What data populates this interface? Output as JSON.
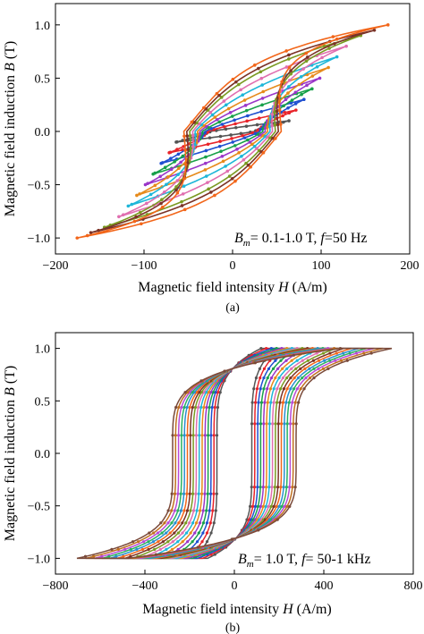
{
  "chart_data": [
    {
      "panel_label": "(a)",
      "type": "line",
      "xlabel_main": "Magnetic field intensity ",
      "xlabel_italic": "H",
      "xlabel_unit": " (A/m)",
      "ylabel_main": "Magnetic field induction ",
      "ylabel_italic": "B",
      "ylabel_unit": " (T)",
      "xlim": [
        -200,
        200
      ],
      "ylim": [
        -1.15,
        1.2
      ],
      "xticks": [
        -200,
        -100,
        0,
        100,
        200
      ],
      "yticks": [
        -1.0,
        -0.5,
        0.0,
        0.5,
        1.0
      ],
      "xtick_labels": [
        "−200",
        "−100",
        "0",
        "100",
        "200"
      ],
      "ytick_labels": [
        "−1.0",
        "−0.5",
        "0.0",
        "0.5",
        "1.0"
      ],
      "grid": false,
      "legend": "none",
      "annotation": {
        "sym": "B",
        "sub": "m",
        "rest": "= 0.1-1.0 T, ",
        "sym2": "f",
        "rest2": "=50 Hz"
      },
      "series": [
        {
          "color": "#555555",
          "Bm": 0.1,
          "Hm": 55,
          "Hc": 45,
          "sharp": 1.2
        },
        {
          "color": "#e8242a",
          "Bm": 0.2,
          "Hm": 62,
          "Hc": 50,
          "sharp": 1.3
        },
        {
          "color": "#1f4fd0",
          "Bm": 0.3,
          "Hm": 70,
          "Hc": 56,
          "sharp": 1.4
        },
        {
          "color": "#18a04a",
          "Bm": 0.4,
          "Hm": 78,
          "Hc": 62,
          "sharp": 1.6
        },
        {
          "color": "#9a36c8",
          "Bm": 0.5,
          "Hm": 86,
          "Hc": 67,
          "sharp": 1.8
        },
        {
          "color": "#e68a1a",
          "Bm": 0.6,
          "Hm": 95,
          "Hc": 72,
          "sharp": 2.0
        },
        {
          "color": "#1db6d8",
          "Bm": 0.7,
          "Hm": 104,
          "Hc": 77,
          "sharp": 2.3
        },
        {
          "color": "#e06fb0",
          "Bm": 0.8,
          "Hm": 114,
          "Hc": 82,
          "sharp": 2.6
        },
        {
          "color": "#7a9a22",
          "Bm": 0.9,
          "Hm": 130,
          "Hc": 88,
          "sharp": 3.0
        },
        {
          "color": "#7b3226",
          "Bm": 0.95,
          "Hm": 145,
          "Hc": 94,
          "sharp": 3.5
        },
        {
          "color": "#f2661a",
          "Bm": 1.0,
          "Hm": 160,
          "Hc": 100,
          "sharp": 4.2
        }
      ]
    },
    {
      "panel_label": "(b)",
      "type": "line",
      "xlabel_main": "Magnetic field intensity ",
      "xlabel_italic": "H",
      "xlabel_unit": " (A/m)",
      "ylabel_main": "Magnetic field induction ",
      "ylabel_italic": "B",
      "ylabel_unit": " (T)",
      "xlim": [
        -800,
        800
      ],
      "ylim": [
        -1.15,
        1.15
      ],
      "xticks": [
        -800,
        -400,
        0,
        400,
        800
      ],
      "yticks": [
        -1.0,
        -0.5,
        0.0,
        0.5,
        1.0
      ],
      "xtick_labels": [
        "−800",
        "−400",
        "0",
        "400",
        "800"
      ],
      "ytick_labels": [
        "−1.0",
        "−0.5",
        "0.0",
        "0.5",
        "1.0"
      ],
      "grid": false,
      "legend": "none",
      "annotation": {
        "sym": "B",
        "sub": "m",
        "rest": "= 1.0 T, ",
        "sym2": "f",
        "rest2": "= 50-1 kHz"
      },
      "series": [
        {
          "color": "#555555",
          "Hm": 160,
          "Hc": 130
        },
        {
          "color": "#e8242a",
          "Hm": 190,
          "Hc": 152
        },
        {
          "color": "#1f4fd0",
          "Hm": 220,
          "Hc": 174
        },
        {
          "color": "#18a04a",
          "Hm": 250,
          "Hc": 196
        },
        {
          "color": "#9a36c8",
          "Hm": 280,
          "Hc": 218
        },
        {
          "color": "#e68a1a",
          "Hm": 310,
          "Hc": 240
        },
        {
          "color": "#1db6d8",
          "Hm": 340,
          "Hc": 262
        },
        {
          "color": "#e06fb0",
          "Hm": 370,
          "Hc": 284
        },
        {
          "color": "#7a9a22",
          "Hm": 400,
          "Hc": 306
        },
        {
          "color": "#7b3226",
          "Hm": 430,
          "Hc": 328
        },
        {
          "color": "#f2661a",
          "Hm": 460,
          "Hc": 350
        },
        {
          "color": "#2a8fd0",
          "Hm": 490,
          "Hc": 372
        },
        {
          "color": "#29b060",
          "Hm": 520,
          "Hc": 394
        },
        {
          "color": "#b84bd6",
          "Hm": 550,
          "Hc": 416
        },
        {
          "color": "#c07020",
          "Hm": 585,
          "Hc": 438
        },
        {
          "color": "#7a4a3a",
          "Hm": 620,
          "Hc": 460
        }
      ]
    }
  ]
}
